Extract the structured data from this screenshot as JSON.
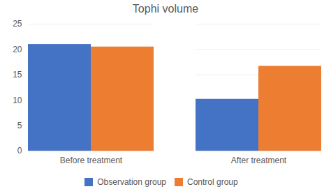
{
  "chart_data": {
    "type": "bar",
    "title": "Tophi volume",
    "categories": [
      "Before treatment",
      "After treatment"
    ],
    "series": [
      {
        "name": "Observation group",
        "color": "#4472C4",
        "values": [
          21.0,
          10.2
        ]
      },
      {
        "name": "Control group",
        "color": "#ED7D31",
        "values": [
          20.5,
          16.7
        ]
      }
    ],
    "ylim": [
      0,
      25
    ],
    "yticks": [
      0,
      5,
      10,
      15,
      20,
      25
    ],
    "grid": true,
    "legend": "bottom"
  }
}
